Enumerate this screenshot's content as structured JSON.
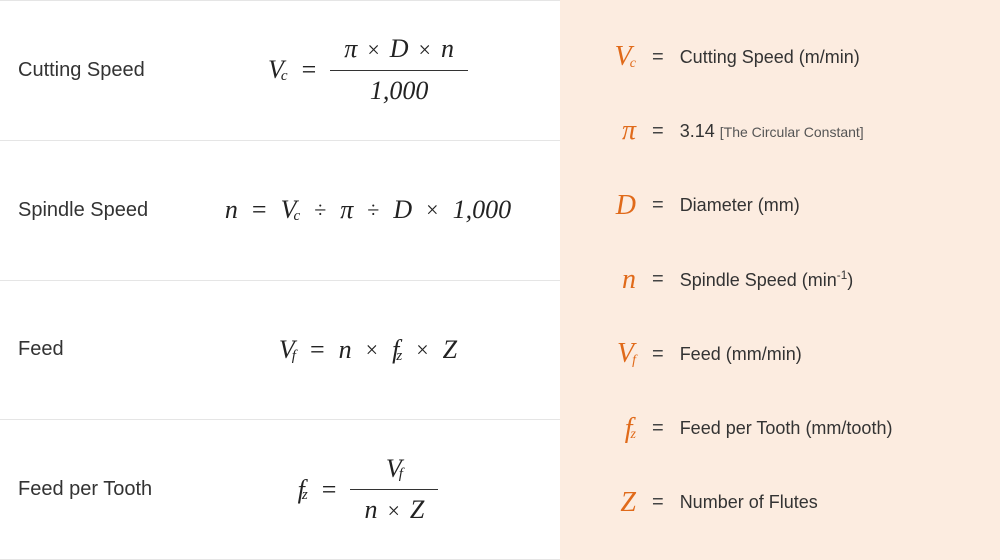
{
  "formulas": [
    {
      "label": "Cutting Speed",
      "lhs": {
        "base": "V",
        "sub": "c"
      },
      "type": "fraction",
      "numerator": [
        {
          "t": "π"
        },
        {
          "op": "×"
        },
        {
          "t": "D"
        },
        {
          "op": "×"
        },
        {
          "t": "n"
        }
      ],
      "denominator": [
        {
          "t": "1,000"
        }
      ]
    },
    {
      "label": "Spindle Speed",
      "lhs": {
        "base": "n"
      },
      "type": "inline",
      "rhs": [
        {
          "base": "V",
          "sub": "c"
        },
        {
          "op": "÷"
        },
        {
          "t": "π"
        },
        {
          "op": "÷"
        },
        {
          "t": "D"
        },
        {
          "op": "×"
        },
        {
          "t": "1,000"
        }
      ]
    },
    {
      "label": "Feed",
      "lhs": {
        "base": "V",
        "sub": "f"
      },
      "type": "inline",
      "rhs": [
        {
          "t": "n"
        },
        {
          "op": "×"
        },
        {
          "base": "f",
          "sub": "z"
        },
        {
          "op": "×"
        },
        {
          "t": "Z"
        }
      ]
    },
    {
      "label": "Feed per Tooth",
      "lhs": {
        "base": "f",
        "sub": "z"
      },
      "type": "fraction",
      "numerator": [
        {
          "base": "V",
          "sub": "f"
        }
      ],
      "denominator": [
        {
          "t": "n"
        },
        {
          "op": "×"
        },
        {
          "t": "Z"
        }
      ]
    }
  ],
  "legend": [
    {
      "sym": {
        "base": "V",
        "sub": "c"
      },
      "desc": "Cutting Speed (m/min)"
    },
    {
      "sym": {
        "base": "π"
      },
      "desc": "3.14",
      "note": "[The Circular Constant]"
    },
    {
      "sym": {
        "base": "D"
      },
      "desc": "Diameter (mm)"
    },
    {
      "sym": {
        "base": "n"
      },
      "desc": "Spindle Speed (min",
      "sup": "-1",
      "descAfter": ")"
    },
    {
      "sym": {
        "base": "V",
        "sub": "f"
      },
      "desc": "Feed (mm/min)"
    },
    {
      "sym": {
        "base": "f",
        "sub": "z"
      },
      "desc": "Feed per Tooth (mm/tooth)"
    },
    {
      "sym": {
        "base": "Z"
      },
      "desc": "Number of Flutes"
    }
  ],
  "colors": {
    "accent": "#e06a1a",
    "legend_bg": "#fcece0",
    "divider": "#e5e5e5",
    "text": "#333333"
  }
}
